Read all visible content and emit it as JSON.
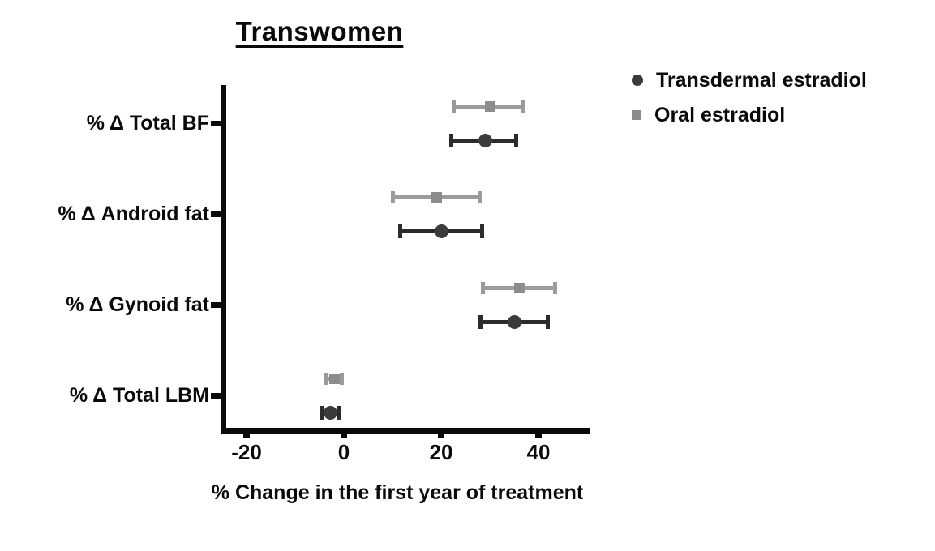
{
  "chart_data": {
    "type": "scatter",
    "variant": "horizontal dot plot with error bars (forest-style)",
    "title": "Transwomen",
    "xlabel": "% Change in the first year of treatment",
    "categories": [
      "% Δ Total BF",
      "% Δ Android fat",
      "% Δ Gynoid fat",
      "% Δ Total LBM"
    ],
    "x_ticks": [
      -20,
      0,
      20,
      40
    ],
    "xlim": [
      -25,
      50
    ],
    "grid": false,
    "legend_position": "top-right",
    "axis_color": "#0a0a0a",
    "text_color": "#0a0a0a",
    "series": [
      {
        "name": "Transdermal estradiol",
        "marker": "circle",
        "color": "#3b3b3d",
        "line_color": "#2c2c2e",
        "values": [
          {
            "mean": 29,
            "lo": 22,
            "hi": 35.5
          },
          {
            "mean": 20,
            "lo": 11.5,
            "hi": 28.5
          },
          {
            "mean": 35,
            "lo": 28,
            "hi": 42
          },
          {
            "mean": -2.7,
            "lo": -4.5,
            "hi": -1
          }
        ]
      },
      {
        "name": "Oral estradiol",
        "marker": "square",
        "color": "#8c8c8c",
        "line_color": "#9b9b9b",
        "values": [
          {
            "mean": 30,
            "lo": 22.5,
            "hi": 37
          },
          {
            "mean": 19,
            "lo": 10,
            "hi": 28
          },
          {
            "mean": 36,
            "lo": 28.5,
            "hi": 43.5
          },
          {
            "mean": -2,
            "lo": -3.7,
            "hi": -0.3
          }
        ]
      }
    ]
  }
}
